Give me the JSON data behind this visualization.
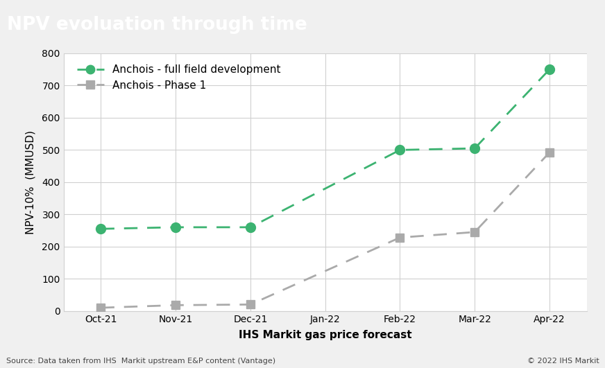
{
  "title": "NPV evoluation through time",
  "title_bg_color": "#878787",
  "title_text_color": "#ffffff",
  "xlabel": "IHS Markit gas price forecast",
  "ylabel": "NPV-10%  (MMUSD)",
  "categories": [
    "Oct-21",
    "Nov-21",
    "Dec-21",
    "Jan-22",
    "Feb-22",
    "Mar-22",
    "Apr-22"
  ],
  "series1_label": "Anchois - full field development",
  "series1_values": [
    255,
    260,
    260,
    null,
    500,
    505,
    750
  ],
  "series1_color": "#3cb371",
  "series1_marker": "o",
  "series2_label": "Anchois - Phase 1",
  "series2_values": [
    10,
    18,
    20,
    null,
    228,
    245,
    492
  ],
  "series2_color": "#aaaaaa",
  "series2_marker": "s",
  "ylim": [
    0,
    800
  ],
  "yticks": [
    0,
    100,
    200,
    300,
    400,
    500,
    600,
    700,
    800
  ],
  "fig_bg_color": "#f0f0f0",
  "plot_bg_color": "#ffffff",
  "grid_color": "#d0d0d0",
  "source_text": "Source: Data taken from IHS  Markit upstream E&P content (Vantage)",
  "copyright_text": "© 2022 IHS Markit",
  "title_fontsize": 19,
  "axis_label_fontsize": 11,
  "tick_fontsize": 10,
  "legend_fontsize": 11
}
